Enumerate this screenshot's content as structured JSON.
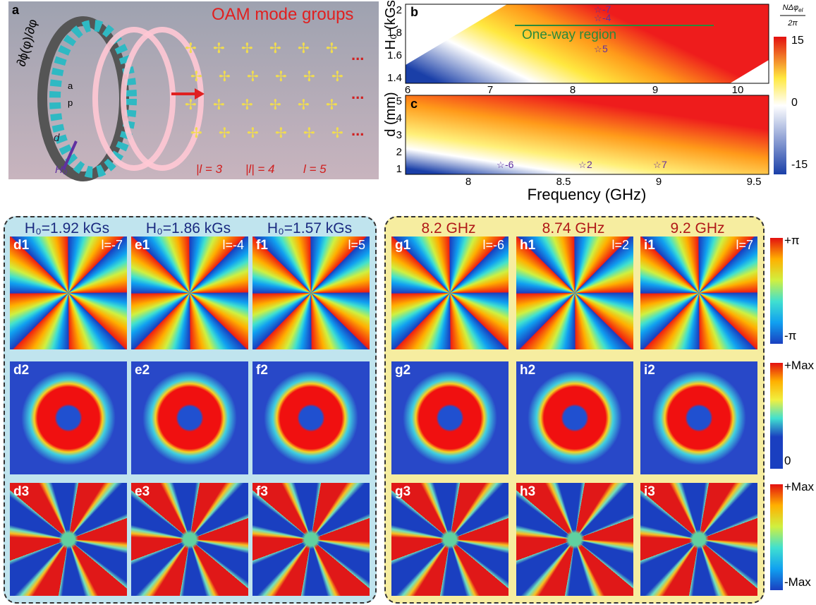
{
  "panel_a": {
    "label": "a",
    "title": "OAM mode groups",
    "phase_gradient": "∂ϕ(φ)/∂φ",
    "a": "a",
    "p": "p",
    "d": "d",
    "field": "H₀",
    "modes": [
      "|l = 3",
      "|l| = 4",
      "l = 5"
    ],
    "ellipsis": [
      "...",
      "...",
      "..."
    ]
  },
  "panel_b": {
    "label": "b",
    "ylabel": "H₀ (kGs)",
    "yticks": [
      "2",
      "1.8",
      "1.6",
      "1.4"
    ],
    "xticks": [
      "6",
      "7",
      "8",
      "9",
      "10"
    ],
    "region": "One-way region",
    "stars": [
      "-7",
      "-4",
      "5"
    ]
  },
  "panel_c": {
    "label": "c",
    "ylabel": "d (mm)",
    "yticks": [
      "5",
      "4",
      "3",
      "2",
      "1"
    ],
    "xticks": [
      "8",
      "8.5",
      "9",
      "9.5"
    ],
    "xlabel": "Frequency (GHz)",
    "stars": [
      "-6",
      "2",
      "7"
    ]
  },
  "colorbar_top": {
    "numerator": "NΔφ",
    "subscript": "el",
    "denominator": "2π",
    "ticks": [
      "15",
      "0",
      "-15"
    ]
  },
  "groups": [
    {
      "headers": [
        "H₀=1.92 kGs",
        "H₀=1.86 kGs",
        "H₀=1.57 kGs"
      ],
      "panels": [
        [
          "d1",
          "e1",
          "f1"
        ],
        [
          "d2",
          "e2",
          "f2"
        ],
        [
          "d3",
          "e3",
          "f3"
        ]
      ],
      "modes": [
        "l=-7",
        "l=-4",
        "l=5"
      ]
    },
    {
      "headers": [
        "8.2 GHz",
        "8.74 GHz",
        "9.2 GHz"
      ],
      "panels": [
        [
          "g1",
          "h1",
          "i1"
        ],
        [
          "g2",
          "h2",
          "i2"
        ],
        [
          "g3",
          "h3",
          "i3"
        ]
      ],
      "modes": [
        "l=-6",
        "l=2",
        "l=7"
      ]
    }
  ],
  "colorbars": [
    [
      "+π",
      "-π"
    ],
    [
      "+Max",
      "0"
    ],
    [
      "+Max",
      "-Max"
    ]
  ]
}
